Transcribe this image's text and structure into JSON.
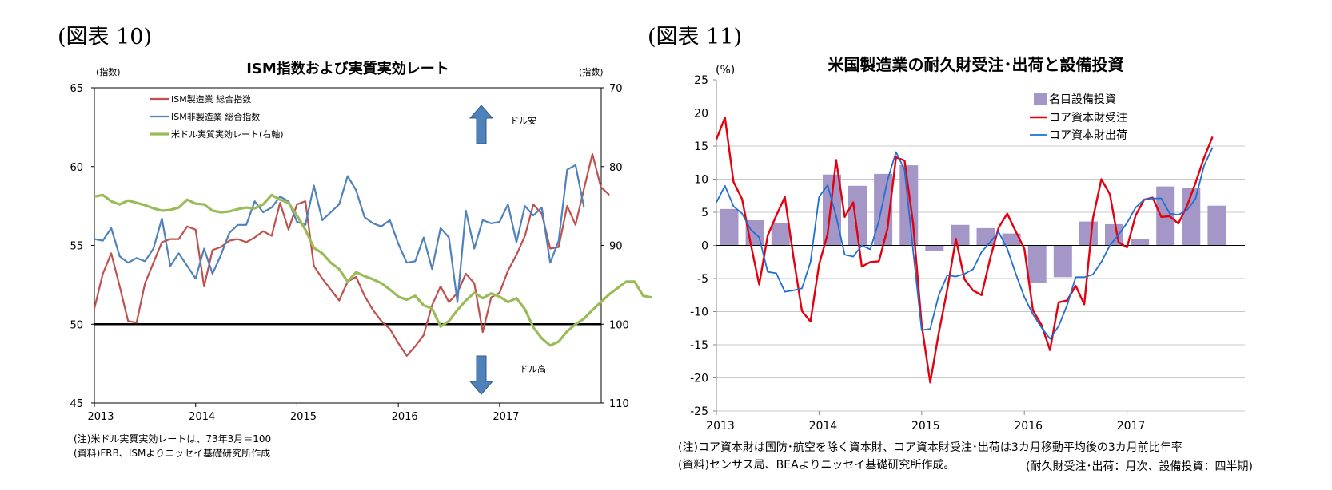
{
  "fig10": {
    "label": "(図表 10)",
    "title": "ISM指数および実質実効レート",
    "left_unit": "(指数)",
    "right_unit": "(指数)",
    "y_ticks": [
      "65",
      "60",
      "55",
      "50",
      "45"
    ],
    "y2_ticks": [
      "70",
      "80",
      "90",
      "100",
      "110"
    ],
    "x_ticks": [
      "2013",
      "2014",
      "2015",
      "2016",
      "2017"
    ],
    "annotation_up": "ドル安",
    "annotation_down": "ドル高",
    "notes": [
      "(注)米ドル実質実効レートは、73年3月＝100",
      "(資料)FRB、ISMよりニッセイ基礎研究所作成"
    ],
    "colors": {
      "ism_mfg": "#c0504d",
      "ism_nonmfg": "#4f81bd",
      "usd_reer": "#9bbb59",
      "arrow": "#4f81bd"
    }
  },
  "fig11": {
    "label": "(図表 11)",
    "title": "米国製造業の耐久財受注･出荷と設備投資",
    "unit": "(%)",
    "y_ticks": [
      "25",
      "20",
      "15",
      "10",
      "5",
      "0",
      "-5",
      "-10",
      "-15",
      "-20",
      "-25"
    ],
    "x_ticks": [
      "2013",
      "2014",
      "2015",
      "2016",
      "2017"
    ],
    "notes": [
      "(注)コア資本財は国防･航空を除く資本財、コア資本財受注･出荷は3カ月移動平均後の3カ月前比年率",
      "(資料)センサス局、BEAよりニッセイ基礎研究所作成。"
    ],
    "note_right": "(耐久財受注･出荷：月次、設備投資：四半期)",
    "colors": {
      "capex": "#a497c8",
      "orders": "#e3000f",
      "shipments": "#1f6fd1"
    }
  },
  "chart_data": [
    {
      "type": "line",
      "title": "ISM指数および実質実効レート",
      "x_start": "2013-01",
      "frequency": "monthly",
      "ylabel": "(指数)",
      "y2label": "(指数)",
      "ylim": [
        45,
        65
      ],
      "y2lim": [
        110,
        70
      ],
      "y2_inverted": true,
      "reference_line": 50,
      "legend_position": "top-left",
      "series": [
        {
          "name": "ISM製造業 総合指数",
          "axis": "left",
          "values": [
            51.0,
            53.2,
            54.5,
            52.4,
            50.2,
            50.1,
            52.6,
            53.9,
            55.2,
            55.4,
            55.4,
            56.2,
            56.0,
            52.4,
            54.7,
            54.9,
            55.3,
            55.4,
            55.2,
            55.5,
            55.9,
            55.6,
            57.7,
            56.0,
            57.6,
            57.8,
            53.7,
            52.9,
            52.2,
            51.5,
            52.7,
            53.0,
            51.8,
            50.9,
            50.2,
            49.7,
            48.8,
            48.0,
            48.6,
            49.3,
            51.2,
            52.4,
            51.4,
            52.0,
            53.2,
            52.6,
            49.5,
            51.7,
            52.0,
            53.4,
            54.4,
            55.6,
            57.6,
            57.0,
            54.8,
            54.9,
            57.5,
            56.3,
            58.6,
            60.8,
            58.7,
            58.2
          ]
        },
        {
          "name": "ISM非製造業 総合指数",
          "axis": "left",
          "values": [
            55.4,
            55.3,
            56.1,
            54.3,
            53.9,
            54.2,
            54.0,
            54.8,
            56.7,
            53.7,
            54.5,
            53.7,
            52.9,
            54.8,
            53.2,
            54.4,
            55.8,
            56.3,
            56.3,
            57.8,
            57.1,
            57.4,
            58.1,
            57.8,
            56.5,
            56.3,
            58.8,
            56.6,
            57.1,
            57.6,
            59.4,
            58.5,
            56.8,
            56.4,
            56.2,
            56.6,
            55.1,
            53.9,
            54.0,
            55.5,
            53.5,
            56.1,
            55.5,
            51.4,
            57.2,
            54.8,
            56.6,
            56.4,
            56.5,
            57.6,
            55.2,
            57.5,
            56.9,
            57.4,
            53.9,
            55.3,
            59.8,
            60.1,
            57.4
          ]
        },
        {
          "name": "米ドル実質実効レート(右軸)",
          "axis": "right",
          "values": [
            83.8,
            83.6,
            84.4,
            84.8,
            84.3,
            84.6,
            84.9,
            85.3,
            85.6,
            85.5,
            85.2,
            84.2,
            84.7,
            84.8,
            85.6,
            85.8,
            85.7,
            85.4,
            85.2,
            85.3,
            84.8,
            83.6,
            84.2,
            84.6,
            86.2,
            88.0,
            90.3,
            91.0,
            92.2,
            93.0,
            94.6,
            93.4,
            93.9,
            94.3,
            94.8,
            95.6,
            96.5,
            96.9,
            96.4,
            97.6,
            98.0,
            100.3,
            99.6,
            98.2,
            97.0,
            96.0,
            96.7,
            96.1,
            96.5,
            97.2,
            96.7,
            98.1,
            100.4,
            101.8,
            102.7,
            102.2,
            100.9,
            100.0,
            99.3,
            98.2,
            97.2,
            96.2,
            95.4,
            94.6,
            94.6,
            96.4,
            96.6
          ]
        }
      ]
    },
    {
      "type": "bar+line",
      "title": "米国製造業の耐久財受注･出荷と設備投資",
      "x_start": "2013-01",
      "ylabel": "(%)",
      "ylim": [
        -25,
        25
      ],
      "legend_position": "top-right",
      "bars": {
        "name": "名目設備投資",
        "frequency": "quarterly",
        "values": [
          5.5,
          3.8,
          3.4,
          null,
          10.7,
          9.0,
          10.8,
          12.1,
          -0.8,
          3.1,
          2.6,
          1.8,
          -5.6,
          -4.8,
          3.6,
          3.2,
          0.9,
          8.9,
          8.7,
          6.0
        ]
      },
      "series": [
        {
          "name": "コア資本財受注",
          "frequency": "monthly",
          "values": [
            16.0,
            19.3,
            9.6,
            7.0,
            0.3,
            -5.9,
            1.5,
            4.5,
            7.3,
            -1.7,
            -9.9,
            -11.5,
            -2.9,
            1.7,
            12.9,
            4.3,
            6.5,
            -3.2,
            -2.5,
            -2.4,
            2.5,
            13.3,
            12.8,
            3.3,
            -12.0,
            -20.7,
            -13.2,
            -6.6,
            1.0,
            -5.1,
            -6.8,
            -7.5,
            -2.0,
            2.7,
            4.8,
            2.1,
            -0.5,
            -9.8,
            -12.0,
            -15.8,
            -8.6,
            -8.3,
            -6.1,
            -8.9,
            4.0,
            10.0,
            7.7,
            0.5,
            -0.3,
            4.5,
            6.9,
            7.2,
            4.3,
            4.4,
            3.3,
            5.9,
            9.4,
            13.2,
            16.4
          ]
        },
        {
          "name": "コア資本財出荷",
          "frequency": "monthly",
          "values": [
            6.5,
            9.0,
            5.9,
            4.8,
            2.4,
            1.2,
            -4.0,
            -4.2,
            -7.0,
            -6.8,
            -6.5,
            -2.5,
            7.3,
            9.1,
            4.4,
            -1.4,
            -1.7,
            0.0,
            -0.6,
            3.7,
            9.8,
            14.1,
            11.4,
            -0.8,
            -12.8,
            -12.6,
            -7.5,
            -4.5,
            -4.7,
            -4.3,
            -3.6,
            -1.0,
            0.5,
            2.0,
            -0.5,
            -4.3,
            -7.8,
            -10.4,
            -12.4,
            -14.1,
            -12.2,
            -9.0,
            -4.8,
            -4.8,
            -4.4,
            -2.5,
            0.0,
            1.6,
            3.4,
            5.7,
            6.9,
            7.1,
            7.1,
            4.8,
            4.6,
            5.3,
            7.0,
            12.0,
            14.8
          ]
        }
      ]
    }
  ]
}
